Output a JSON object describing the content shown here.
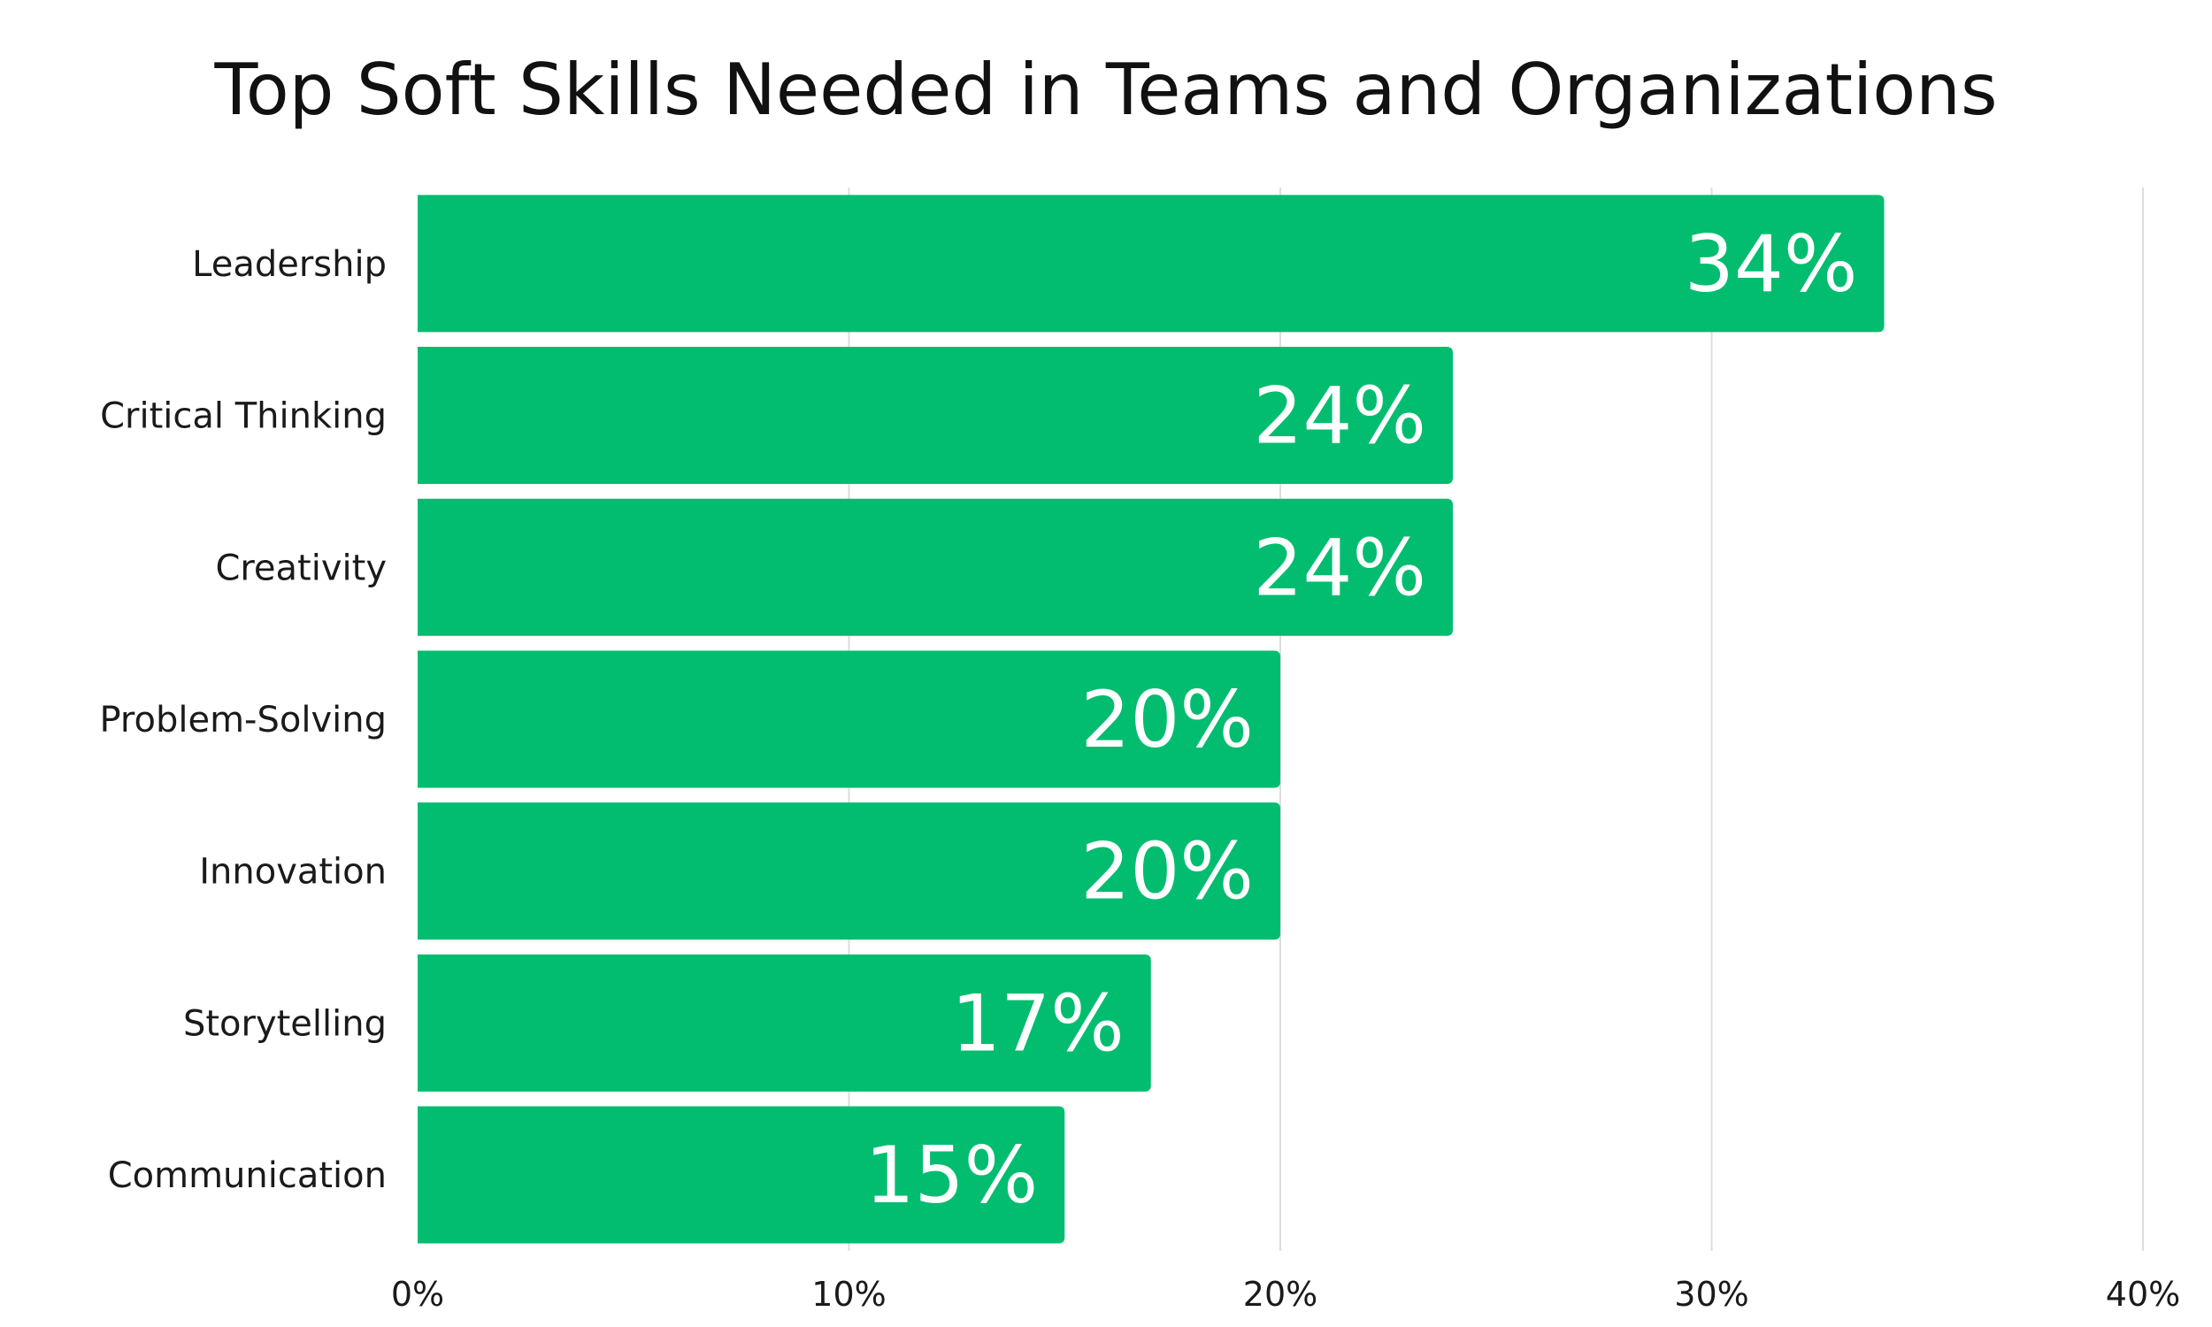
{
  "chart_data": {
    "type": "bar",
    "orientation": "horizontal",
    "title": "Top Soft Skills Needed in Teams and Organizations",
    "categories": [
      "Leadership",
      "Critical Thinking",
      "Creativity",
      "Problem-Solving",
      "Innovation",
      "Storytelling",
      "Communication"
    ],
    "values": [
      34,
      24,
      24,
      20,
      20,
      17,
      15
    ],
    "data_labels": [
      "34%",
      "24%",
      "24%",
      "20%",
      "20%",
      "17%",
      "15%"
    ],
    "xlim": [
      0,
      40
    ],
    "x_ticks": [
      0,
      10,
      20,
      30,
      40
    ],
    "x_tick_labels": [
      "0%",
      "10%",
      "20%",
      "30%",
      "40%"
    ],
    "xlabel": "",
    "ylabel": "",
    "grid": "vertical",
    "legend": "none",
    "bar_color": "#02BD6F",
    "grid_color": "#DDDDDD"
  }
}
